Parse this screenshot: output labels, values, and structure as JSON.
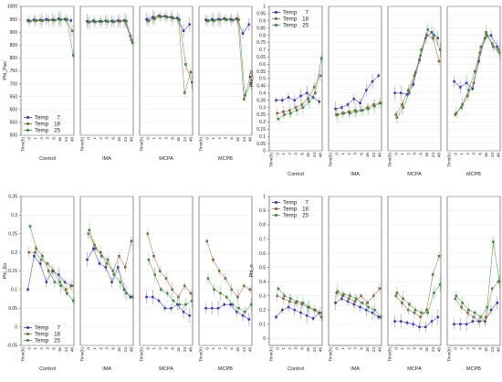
{
  "x_categories": [
    "Time(h)",
    "0",
    "1",
    "2",
    "3",
    "6",
    "16",
    "24",
    "48"
  ],
  "groups": [
    "Control",
    "IMA",
    "MCPA",
    "MCPB"
  ],
  "series_colors": {
    "7": "#3333dd",
    "18": "#9a6a3a",
    "25": "#3a9a3a"
  },
  "chart_data": [
    {
      "type": "line",
      "ylabel": "Phi_Pav",
      "ylim": [
        500,
        1000
      ],
      "yticks": [
        500,
        550,
        600,
        650,
        700,
        750,
        800,
        850,
        900,
        950,
        1000
      ],
      "groups": [
        "Control",
        "IMA",
        "MCPA",
        "MCPB"
      ],
      "x": [
        "Time(h)",
        "0",
        "1",
        "2",
        "3",
        "6",
        "16",
        "24",
        "48"
      ],
      "legend": {
        "placement": "bottom-left",
        "entries": [
          {
            "label": "Temp",
            "value": "7"
          },
          {
            "label": "Temp",
            "value": "18"
          },
          {
            "label": "Temp",
            "value": "25"
          }
        ]
      },
      "series": [
        {
          "temp": "7",
          "color": "#3333dd",
          "values": [
            [
              945,
              948,
              947,
              950,
              948,
              952,
              950,
              945
            ],
            [
              942,
              944,
              942,
              944,
              943,
              945,
              945,
              885
            ],
            [
              950,
              958,
              963,
              962,
              958,
              955,
              905,
              930
            ],
            [
              948,
              950,
              950,
              953,
              950,
              952,
              895,
              930
            ]
          ]
        },
        {
          "temp": "18",
          "color": "#9a6a3a",
          "values": [
            [
              944,
              946,
              946,
              948,
              947,
              950,
              948,
              905
            ],
            [
              940,
              941,
              942,
              942,
              941,
              943,
              944,
              870
            ],
            [
              945,
              955,
              962,
              960,
              956,
              950,
              665,
              745
            ],
            [
              945,
              946,
              950,
              950,
              948,
              950,
              640,
              725
            ]
          ]
        },
        {
          "temp": "25",
          "color": "#3a9a3a",
          "values": [
            [
              942,
              944,
              944,
              946,
              946,
              948,
              950,
              810
            ],
            [
              939,
              940,
              941,
              941,
              940,
              942,
              943,
              860
            ],
            [
              943,
              952,
              960,
              958,
              954,
              948,
              775,
              705
            ],
            [
              943,
              944,
              948,
              948,
              946,
              948,
              655,
              700
            ]
          ]
        }
      ]
    },
    {
      "type": "line",
      "ylabel": "Phi_Do",
      "ylim": [
        0,
        1
      ],
      "yticks": [
        0,
        0.05,
        0.1,
        0.15,
        0.2,
        0.25,
        0.3,
        0.35,
        0.4,
        0.45,
        0.5,
        0.55,
        0.6,
        0.65,
        0.7,
        0.75,
        0.8,
        0.85,
        0.9,
        0.95,
        1
      ],
      "groups": [
        "Control",
        "IMA",
        "MCPA",
        "MCPB"
      ],
      "x": [
        "Time(h)",
        "0",
        "1",
        "2",
        "3",
        "6",
        "16",
        "24",
        "48"
      ],
      "legend": {
        "placement": "top-left",
        "entries": [
          {
            "label": "Temp",
            "value": "7"
          },
          {
            "label": "Temp",
            "value": "18"
          },
          {
            "label": "Temp",
            "value": "25"
          }
        ]
      },
      "series": [
        {
          "temp": "7",
          "color": "#3333dd",
          "values": [
            [
              0.35,
              0.35,
              0.37,
              0.35,
              0.38,
              0.4,
              0.37,
              0.34
            ],
            [
              0.29,
              0.3,
              0.32,
              0.36,
              0.33,
              0.42,
              0.48,
              0.52
            ],
            [
              0.4,
              0.4,
              0.39,
              0.46,
              0.63,
              0.78,
              0.82,
              0.78
            ],
            [
              0.48,
              0.44,
              0.47,
              0.43,
              0.62,
              0.78,
              0.8,
              0.72
            ]
          ]
        },
        {
          "temp": "18",
          "color": "#9a6a3a",
          "values": [
            [
              0.26,
              0.27,
              0.28,
              0.3,
              0.32,
              0.36,
              0.44,
              0.52
            ],
            [
              0.25,
              0.26,
              0.27,
              0.28,
              0.28,
              0.3,
              0.32,
              0.33
            ],
            [
              0.25,
              0.32,
              0.42,
              0.52,
              0.66,
              0.8,
              0.78,
              0.62
            ],
            [
              0.25,
              0.3,
              0.38,
              0.47,
              0.68,
              0.82,
              0.74,
              0.7
            ]
          ]
        },
        {
          "temp": "25",
          "color": "#3a9a3a",
          "values": [
            [
              0.22,
              0.25,
              0.26,
              0.28,
              0.3,
              0.34,
              0.4,
              0.64
            ],
            [
              0.25,
              0.26,
              0.26,
              0.27,
              0.28,
              0.29,
              0.31,
              0.33
            ],
            [
              0.23,
              0.3,
              0.4,
              0.54,
              0.7,
              0.84,
              0.8,
              0.7
            ],
            [
              0.26,
              0.32,
              0.42,
              0.55,
              0.72,
              0.8,
              0.72,
              0.68
            ]
          ]
        }
      ]
    },
    {
      "type": "line",
      "ylabel": "Phi_Eo",
      "ylim": [
        -0.05,
        0.35
      ],
      "yticks": [
        -0.05,
        0,
        0.05,
        0.1,
        0.15,
        0.2,
        0.25,
        0.3,
        0.35
      ],
      "groups": [
        "Control",
        "IMA",
        "MCPA",
        "MCPB"
      ],
      "x": [
        "Time(h)",
        "0",
        "1",
        "2",
        "3",
        "6",
        "16",
        "24",
        "48"
      ],
      "legend": {
        "placement": "bottom-left",
        "entries": [
          {
            "label": "Temp",
            "value": "7"
          },
          {
            "label": "Temp",
            "value": "18"
          },
          {
            "label": "Temp",
            "value": "25"
          }
        ]
      },
      "series": [
        {
          "temp": "7",
          "color": "#3333dd",
          "values": [
            [
              0.1,
              0.19,
              0.17,
              0.12,
              0.15,
              0.14,
              0.12,
              0.11
            ],
            [
              0.18,
              0.21,
              0.17,
              0.16,
              0.12,
              0.16,
              0.1,
              0.08
            ],
            [
              0.08,
              0.08,
              0.07,
              0.05,
              0.05,
              0.06,
              0.04,
              0.03
            ],
            [
              0.05,
              0.05,
              0.05,
              0.06,
              0.06,
              0.04,
              0.03,
              0.02
            ]
          ]
        },
        {
          "temp": "18",
          "color": "#9a6a3a",
          "values": [
            [
              0.2,
              0.2,
              0.18,
              0.17,
              0.15,
              0.12,
              0.1,
              0.11
            ],
            [
              0.25,
              0.22,
              0.2,
              0.17,
              0.15,
              0.19,
              0.16,
              0.23
            ],
            [
              0.25,
              0.19,
              0.15,
              0.13,
              0.1,
              0.08,
              0.11,
              0.09
            ],
            [
              0.23,
              0.18,
              0.15,
              0.13,
              0.1,
              0.08,
              0.11,
              0.1
            ]
          ]
        },
        {
          "temp": "25",
          "color": "#3a9a3a",
          "values": [
            [
              0.27,
              0.21,
              0.19,
              0.15,
              0.12,
              0.11,
              0.09,
              0.07
            ],
            [
              0.26,
              0.21,
              0.19,
              0.18,
              0.14,
              0.12,
              0.09,
              0.08
            ],
            [
              0.18,
              0.14,
              0.1,
              0.09,
              0.07,
              0.06,
              0.06,
              0.07
            ],
            [
              0.13,
              0.1,
              0.09,
              0.08,
              0.06,
              0.05,
              0.04,
              0.06
            ]
          ]
        }
      ]
    },
    {
      "type": "line",
      "ylabel": "Phi_n",
      "ylim": [
        -0.05,
        1
      ],
      "yticks": [
        0,
        0.1,
        0.2,
        0.3,
        0.4,
        0.5,
        0.6,
        0.7,
        0.8,
        0.9,
        1
      ],
      "groups": [
        "Control",
        "IMA",
        "MCPA",
        "MCPB"
      ],
      "x": [
        "Time(h)",
        "0",
        "1",
        "2",
        "3",
        "6",
        "16",
        "24",
        "48"
      ],
      "legend": {
        "placement": "top-left",
        "entries": [
          {
            "label": "Temp",
            "value": "7"
          },
          {
            "label": "Temp",
            "value": "18"
          },
          {
            "label": "Temp",
            "value": "25"
          }
        ]
      },
      "series": [
        {
          "temp": "7",
          "color": "#3333dd",
          "values": [
            [
              0.15,
              0.2,
              0.22,
              0.2,
              0.18,
              0.16,
              0.14,
              0.18
            ],
            [
              0.25,
              0.28,
              0.26,
              0.24,
              0.22,
              0.2,
              0.18,
              0.15
            ],
            [
              0.12,
              0.12,
              0.11,
              0.1,
              0.08,
              0.08,
              0.12,
              0.15
            ],
            [
              0.1,
              0.1,
              0.1,
              0.12,
              0.12,
              0.12,
              0.2,
              0.25
            ]
          ]
        },
        {
          "temp": "18",
          "color": "#9a6a3a",
          "values": [
            [
              0.3,
              0.28,
              0.26,
              0.25,
              0.24,
              0.22,
              0.2,
              0.18
            ],
            [
              0.32,
              0.3,
              0.28,
              0.26,
              0.3,
              0.25,
              0.3,
              0.35
            ],
            [
              0.3,
              0.25,
              0.2,
              0.18,
              0.15,
              0.2,
              0.45,
              0.58
            ],
            [
              0.28,
              0.22,
              0.18,
              0.15,
              0.12,
              0.15,
              0.35,
              0.4
            ]
          ]
        },
        {
          "temp": "25",
          "color": "#3a9a3a",
          "values": [
            [
              0.35,
              0.3,
              0.28,
              0.26,
              0.25,
              0.22,
              0.2,
              0.15
            ],
            [
              0.33,
              0.31,
              0.3,
              0.28,
              0.25,
              0.22,
              0.2,
              0.15
            ],
            [
              0.32,
              0.28,
              0.24,
              0.2,
              0.18,
              0.18,
              0.32,
              0.38
            ],
            [
              0.3,
              0.25,
              0.2,
              0.18,
              0.15,
              0.22,
              0.68,
              0.4
            ]
          ]
        }
      ]
    }
  ]
}
